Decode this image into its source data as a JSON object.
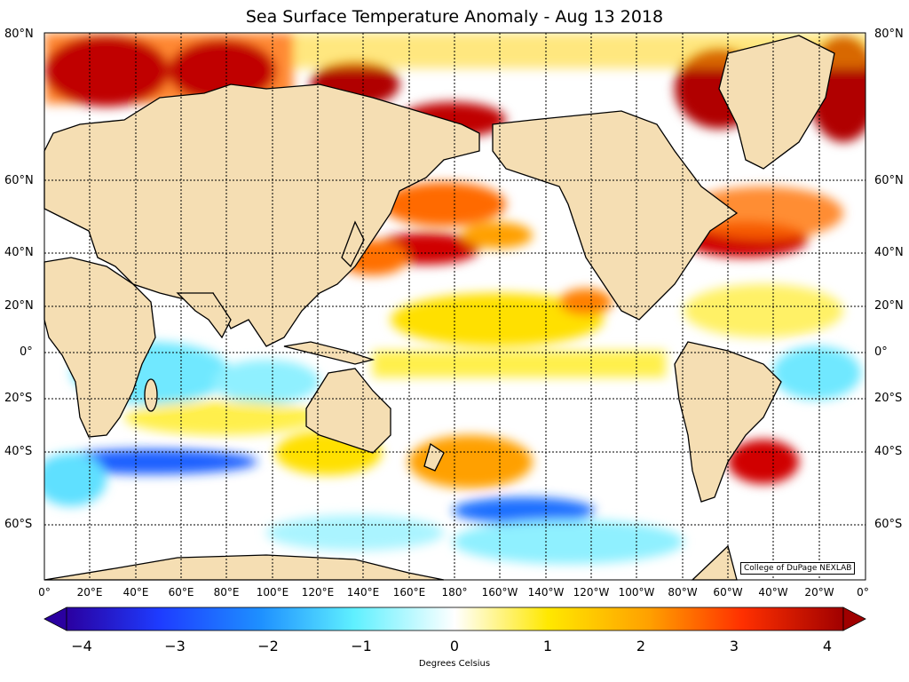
{
  "title": "Sea Surface Temperature Anomaly - Aug 13 2018",
  "credit": "College of DuPage NEXLAB",
  "colorbar": {
    "label": "Degrees Celsius",
    "ticks": [
      "−4",
      "−3",
      "−2",
      "−1",
      "0",
      "1",
      "2",
      "3",
      "4"
    ],
    "range": [
      -4,
      4
    ]
  },
  "lat_labels": [
    "80°N",
    "60°N",
    "40°N",
    "20°N",
    "0°",
    "20°S",
    "40°S",
    "60°S"
  ],
  "lon_labels": [
    "0°",
    "20°E",
    "40°E",
    "60°E",
    "80°E",
    "100°E",
    "120°E",
    "140°E",
    "160°E",
    "180°",
    "160°W",
    "140°W",
    "120°W",
    "100°W",
    "80°W",
    "60°W",
    "40°W",
    "20°W",
    "0°"
  ],
  "colors": {
    "land": "#f5deb3",
    "ocean_neutral": "#ffffff",
    "warm_max": "#b00000",
    "cool_max": "#2a00a0"
  }
}
